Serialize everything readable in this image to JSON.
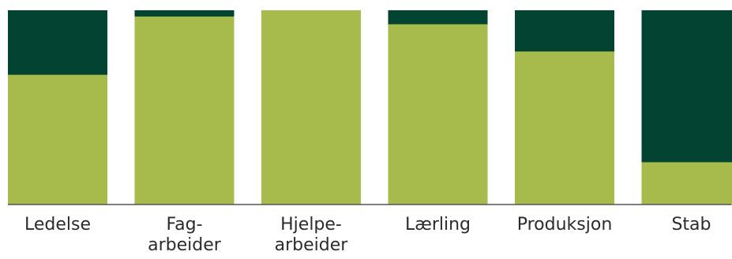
{
  "chart_data": {
    "type": "bar",
    "stacked": true,
    "normalized": true,
    "categories": [
      "Ledelse",
      "Fag-\narbeider",
      "Hjelpe-\narbeider",
      "Lærling",
      "Produksjon",
      "Stab"
    ],
    "series": [
      {
        "values": [
          0.67,
          0.97,
          1.0,
          0.93,
          0.79,
          0.22
        ]
      },
      {
        "values": [
          0.33,
          0.03,
          0.0,
          0.07,
          0.21,
          0.78
        ]
      }
    ],
    "ylim": [
      0,
      1
    ],
    "grid": false,
    "legend": "none",
    "colors": [
      "#a6bb4b",
      "#034332"
    ],
    "axis_color": "#555555"
  }
}
